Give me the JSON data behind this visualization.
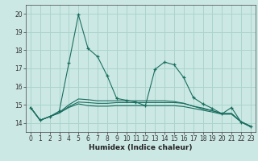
{
  "title": "",
  "xlabel": "Humidex (Indice chaleur)",
  "bg_color": "#cce8e4",
  "grid_color": "#aad4cc",
  "line_color": "#1a6e60",
  "xlim": [
    -0.5,
    23.5
  ],
  "ylim": [
    13.5,
    20.5
  ],
  "xticks": [
    0,
    1,
    2,
    3,
    4,
    5,
    6,
    7,
    8,
    9,
    10,
    11,
    12,
    13,
    14,
    15,
    16,
    17,
    18,
    19,
    20,
    21,
    22,
    23
  ],
  "yticks": [
    14,
    15,
    16,
    17,
    18,
    19,
    20
  ],
  "line1_x": [
    0,
    1,
    2,
    3,
    4,
    5,
    6,
    7,
    8,
    9,
    10,
    11,
    12,
    13,
    14,
    15,
    16,
    17,
    18,
    19,
    20,
    21,
    22,
    23
  ],
  "line1_y": [
    14.85,
    14.15,
    14.35,
    14.65,
    17.3,
    19.95,
    18.1,
    17.65,
    16.6,
    15.35,
    15.25,
    15.15,
    14.95,
    16.95,
    17.35,
    17.2,
    16.5,
    15.4,
    15.05,
    14.8,
    14.5,
    14.85,
    14.05,
    13.8
  ],
  "line2_x": [
    0,
    1,
    2,
    3,
    4,
    5,
    6,
    7,
    8,
    9,
    10,
    11,
    12,
    13,
    14,
    15,
    16,
    17,
    18,
    19,
    20,
    21,
    22,
    23
  ],
  "line2_y": [
    14.85,
    14.15,
    14.35,
    14.55,
    14.85,
    15.05,
    14.95,
    14.92,
    14.92,
    14.95,
    14.95,
    14.95,
    14.95,
    14.95,
    14.95,
    14.95,
    14.9,
    14.8,
    14.7,
    14.6,
    14.48,
    14.48,
    14.05,
    13.78
  ],
  "line3_x": [
    0,
    1,
    2,
    3,
    4,
    5,
    6,
    7,
    8,
    9,
    10,
    11,
    12,
    13,
    14,
    15,
    16,
    17,
    18,
    19,
    20,
    21,
    22,
    23
  ],
  "line3_y": [
    14.85,
    14.15,
    14.35,
    14.55,
    14.9,
    15.15,
    15.12,
    15.08,
    15.08,
    15.12,
    15.12,
    15.12,
    15.12,
    15.12,
    15.12,
    15.12,
    15.08,
    14.92,
    14.77,
    14.67,
    14.52,
    14.52,
    14.07,
    13.82
  ],
  "line4_x": [
    0,
    1,
    2,
    3,
    4,
    5,
    6,
    7,
    8,
    9,
    10,
    11,
    12,
    13,
    14,
    15,
    16,
    17,
    18,
    19,
    20,
    21,
    22,
    23
  ],
  "line4_y": [
    14.85,
    14.15,
    14.35,
    14.58,
    15.0,
    15.32,
    15.28,
    15.22,
    15.22,
    15.22,
    15.22,
    15.22,
    15.22,
    15.22,
    15.22,
    15.18,
    15.08,
    14.92,
    14.82,
    14.67,
    14.52,
    14.52,
    14.07,
    13.82
  ],
  "tick_fontsize": 5.5,
  "xlabel_fontsize": 6.5
}
